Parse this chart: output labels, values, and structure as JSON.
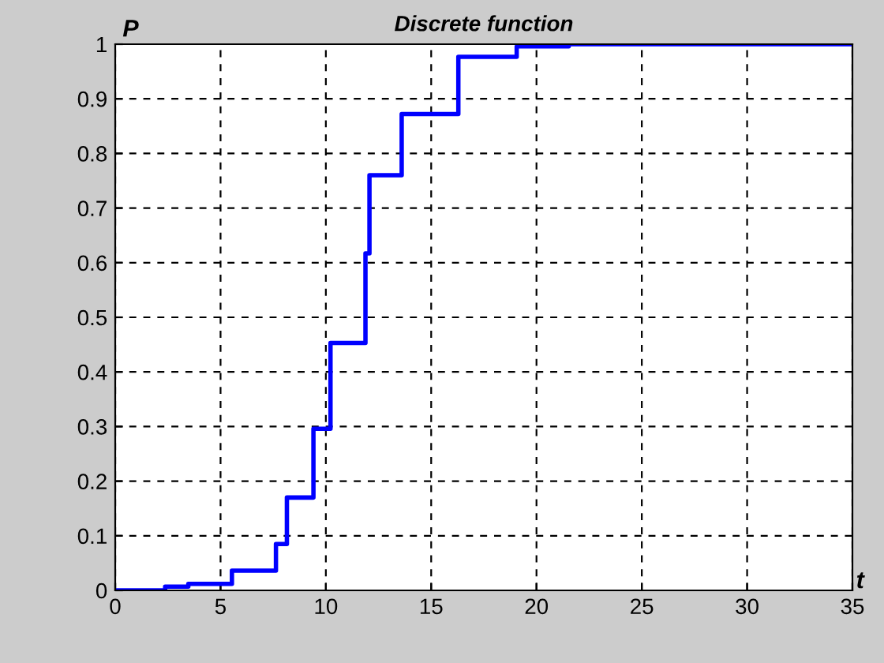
{
  "chart_data": {
    "type": "step",
    "title": "Discrete function",
    "xlabel": "t",
    "ylabel": "P",
    "x": [
      0,
      2.37,
      3.47,
      5.54,
      7.63,
      8.15,
      9.41,
      10.22,
      11.88,
      12.07,
      13.6,
      16.29,
      19.06,
      21.53,
      35
    ],
    "series": [
      {
        "color": "#0000ff",
        "values": [
          0,
          0.007,
          0.012,
          0.036,
          0.085,
          0.17,
          0.296,
          0.453,
          0.617,
          0.76,
          0.872,
          0.977,
          0.996,
          1.0,
          1.0
        ]
      }
    ],
    "xlim": [
      0,
      35
    ],
    "ylim": [
      0,
      1
    ],
    "xticks": [
      0,
      5,
      10,
      15,
      20,
      25,
      30,
      35
    ],
    "yticks": [
      0,
      0.1,
      0.2,
      0.3,
      0.4,
      0.5,
      0.6,
      0.7,
      0.8,
      0.9,
      1
    ],
    "grid": true,
    "line_style": "solid",
    "marker": "none"
  }
}
